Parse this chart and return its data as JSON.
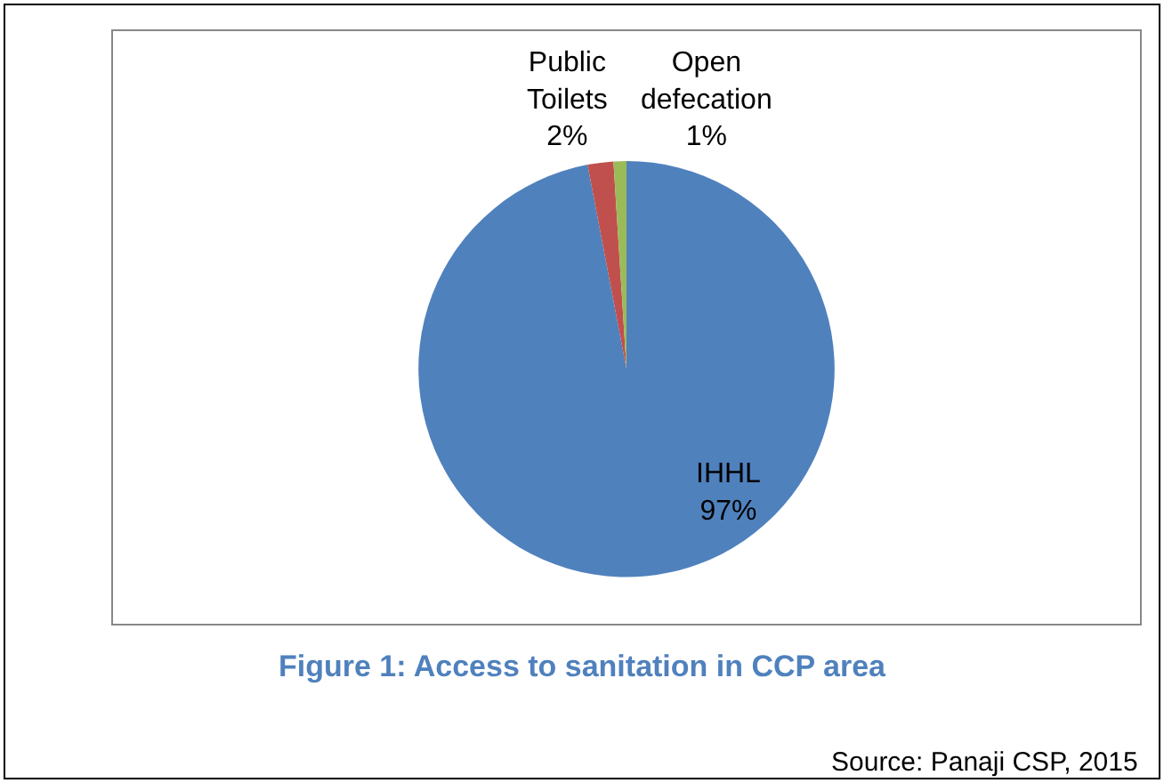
{
  "chart_data": {
    "type": "pie",
    "title": "Figure 1: Access to sanitation in CCP area",
    "categories": [
      "IHHL",
      "Public Toilets",
      "Open defecation"
    ],
    "values": [
      97,
      2,
      1
    ],
    "colors": [
      "#4f81bd",
      "#c0504d",
      "#9bbb59"
    ],
    "value_labels": [
      "97%",
      "2%",
      "1%"
    ],
    "legend": false,
    "annotations": [
      "Source: Panaji CSP, 2015"
    ]
  }
}
